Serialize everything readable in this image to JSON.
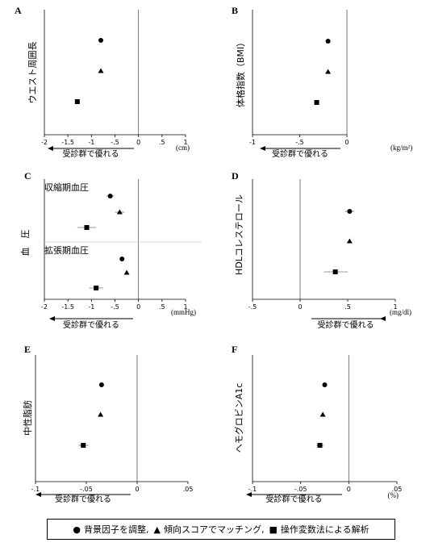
{
  "chart_data": [
    {
      "panel": "A",
      "type": "scatter",
      "ylabel": "ウエスト周囲長",
      "xlabel": "受診群で優れる",
      "unit": "(cm)",
      "xticks": [
        "-2",
        "-1.5",
        "-1",
        "-.5",
        "0",
        ".5",
        "1"
      ],
      "xticks_values": [
        -2,
        -1.5,
        -1,
        -0.5,
        0,
        0.5,
        1
      ],
      "xlim": [
        -2,
        1
      ],
      "groups": [],
      "points": [
        {
          "series": "背景因子を調整",
          "x": -0.8,
          "ci": null
        },
        {
          "series": "傾向スコアでマッチング",
          "x": -0.8,
          "ci": null
        },
        {
          "series": "操作変数法による解析",
          "x": -1.3,
          "ci": null
        }
      ]
    },
    {
      "panel": "B",
      "type": "scatter",
      "ylabel": "体格指数（BMI）",
      "xlabel": "受診群で優れる",
      "unit": "(kg/m²)",
      "xticks": [
        "-1",
        "-.5",
        "0"
      ],
      "xticks_values": [
        -1,
        -0.5,
        0
      ],
      "xlim": [
        -1,
        0
      ],
      "groups": [],
      "points": [
        {
          "series": "背景因子を調整",
          "x": -0.2,
          "ci": null
        },
        {
          "series": "傾向スコアでマッチング",
          "x": -0.2,
          "ci": null
        },
        {
          "series": "操作変数法による解析",
          "x": -0.32,
          "ci": null
        }
      ]
    },
    {
      "panel": "C",
      "type": "scatter",
      "ylabel": "血　圧",
      "xlabel": "受診群で優れる",
      "unit": "(mmHg)",
      "xticks": [
        "-2",
        "-1.5",
        "-1",
        "-.5",
        "0",
        ".5",
        "1"
      ],
      "xticks_values": [
        -2,
        -1.5,
        -1,
        -0.5,
        0,
        0.5,
        1
      ],
      "xlim": [
        -2,
        1
      ],
      "groups": [
        "収縮期血圧",
        "拡張期血圧"
      ],
      "points": [
        {
          "group": "収縮期血圧",
          "series": "背景因子を調整",
          "x": -0.6,
          "ci": [
            -0.68,
            -0.52
          ]
        },
        {
          "group": "収縮期血圧",
          "series": "傾向スコアでマッチング",
          "x": -0.4,
          "ci": [
            -0.5,
            -0.3
          ]
        },
        {
          "group": "収縮期血圧",
          "series": "操作変数法による解析",
          "x": -1.1,
          "ci": [
            -1.3,
            -0.9
          ]
        },
        {
          "group": "拡張期血圧",
          "series": "背景因子を調整",
          "x": -0.35,
          "ci": null
        },
        {
          "group": "拡張期血圧",
          "series": "傾向スコアでマッチング",
          "x": -0.25,
          "ci": null
        },
        {
          "group": "拡張期血圧",
          "series": "操作変数法による解析",
          "x": -0.9,
          "ci": [
            -1.05,
            -0.75
          ]
        }
      ]
    },
    {
      "panel": "D",
      "type": "scatter",
      "ylabel": "HDLコレステロール",
      "xlabel": "受診群で優れる",
      "unit": "(mg/dl)",
      "xticks": [
        "-.5",
        "0",
        ".5",
        "1"
      ],
      "xticks_values": [
        -0.5,
        0,
        0.5,
        1
      ],
      "xlim": [
        -0.5,
        1
      ],
      "groups": [],
      "points": [
        {
          "series": "背景因子を調整",
          "x": 0.52,
          "ci": [
            0.47,
            0.57
          ]
        },
        {
          "series": "傾向スコアでマッチング",
          "x": 0.52,
          "ci": null
        },
        {
          "series": "操作変数法による解析",
          "x": 0.37,
          "ci": [
            0.25,
            0.5
          ]
        }
      ]
    },
    {
      "panel": "E",
      "type": "scatter",
      "ylabel": "中性脂肪",
      "xlabel": "受診群で優れる",
      "unit": "",
      "xticks": [
        "-.1",
        "-.05",
        "0",
        ".05"
      ],
      "xticks_values": [
        -0.1,
        -0.05,
        0,
        0.05
      ],
      "xlim": [
        -0.1,
        0.05
      ],
      "groups": [],
      "points": [
        {
          "series": "背景因子を調整",
          "x": -0.035,
          "ci": null
        },
        {
          "series": "傾向スコアでマッチング",
          "x": -0.036,
          "ci": null
        },
        {
          "series": "操作変数法による解析",
          "x": -0.053,
          "ci": [
            -0.058,
            -0.048
          ]
        }
      ]
    },
    {
      "panel": "F",
      "type": "scatter",
      "ylabel": "ヘモグロビンA1c",
      "xlabel": "受診群で優れる",
      "unit": "(%)",
      "xticks": [
        "-.1",
        "-.05",
        "0",
        ".05"
      ],
      "xticks_values": [
        -0.1,
        -0.05,
        0,
        0.05
      ],
      "xlim": [
        -0.1,
        0.05
      ],
      "groups": [],
      "points": [
        {
          "series": "背景因子を調整",
          "x": -0.025,
          "ci": null
        },
        {
          "series": "傾向スコアでマッチング",
          "x": -0.027,
          "ci": null
        },
        {
          "series": "操作変数法による解析",
          "x": -0.03,
          "ci": [
            -0.034,
            -0.026
          ]
        }
      ]
    }
  ],
  "legend": {
    "items": [
      {
        "symbol": "●",
        "label": "背景因子を調整,"
      },
      {
        "symbol": "▲",
        "label": "傾向スコアでマッチング,"
      },
      {
        "symbol": "■",
        "label": "操作変数法による解析"
      }
    ]
  }
}
